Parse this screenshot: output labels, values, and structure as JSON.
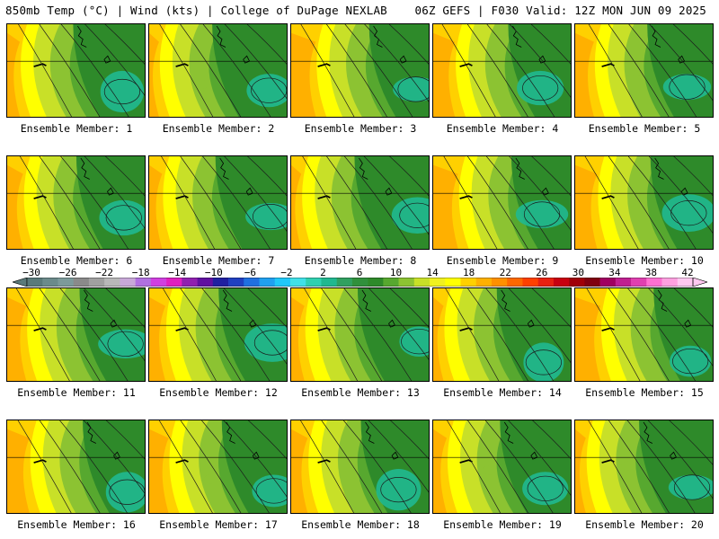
{
  "header": {
    "title_left": "850mb Temp (°C) | Wind (kts) | College of DuPage NEXLAB",
    "title_right": "06Z GEFS | F030 Valid: 12Z MON JUN 09 2025"
  },
  "panels": [
    {
      "label": "Ensemble Member: 1"
    },
    {
      "label": "Ensemble Member: 2"
    },
    {
      "label": "Ensemble Member: 3"
    },
    {
      "label": "Ensemble Member: 4"
    },
    {
      "label": "Ensemble Member: 5"
    },
    {
      "label": "Ensemble Member: 6"
    },
    {
      "label": "Ensemble Member: 7"
    },
    {
      "label": "Ensemble Member: 8"
    },
    {
      "label": "Ensemble Member: 9"
    },
    {
      "label": "Ensemble Member: 10"
    },
    {
      "label": "Ensemble Member: 11"
    },
    {
      "label": "Ensemble Member: 12"
    },
    {
      "label": "Ensemble Member: 13"
    },
    {
      "label": "Ensemble Member: 14"
    },
    {
      "label": "Ensemble Member: 15"
    },
    {
      "label": "Ensemble Member: 16"
    },
    {
      "label": "Ensemble Member: 17"
    },
    {
      "label": "Ensemble Member: 18"
    },
    {
      "label": "Ensemble Member: 19"
    },
    {
      "label": "Ensemble Member: 20"
    }
  ],
  "colorbar": {
    "tick_labels": [
      "−30",
      "−26",
      "−22",
      "−18",
      "−14",
      "−10",
      "−6",
      "−2",
      "2",
      "6",
      "10",
      "14",
      "18",
      "22",
      "26",
      "30",
      "34",
      "38",
      "42"
    ],
    "colors": [
      "#5a7a7a",
      "#6b8b8b",
      "#7c9a9a",
      "#8a8a8a",
      "#a0a0a0",
      "#b8b8b8",
      "#c8a8d8",
      "#b070e0",
      "#d040e0",
      "#e020c0",
      "#9020b0",
      "#6010a0",
      "#2020a0",
      "#2040c0",
      "#2070e0",
      "#20a0f0",
      "#20c8f8",
      "#40e0e8",
      "#30d0b0",
      "#20b890",
      "#30a060",
      "#30903c",
      "#2e8a2a",
      "#57a82f",
      "#8cc332",
      "#c8e028",
      "#f0f020",
      "#ffff00",
      "#ffd000",
      "#ffb000",
      "#ff9000",
      "#ff6800",
      "#ff4000",
      "#e82010",
      "#c80010",
      "#a00008",
      "#800010",
      "#a00060",
      "#c02090",
      "#e040b0",
      "#ff70d0",
      "#ffa0e0",
      "#ffc8f0"
    ]
  }
}
